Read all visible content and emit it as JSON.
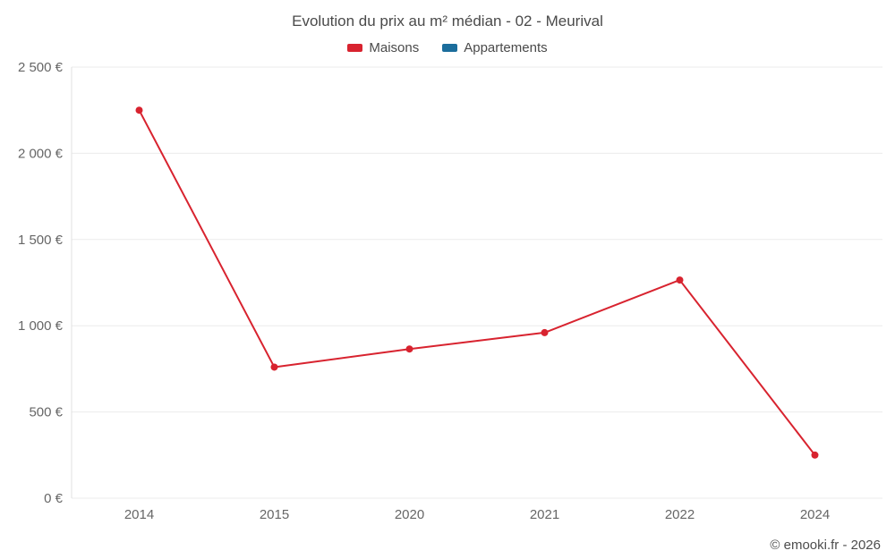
{
  "title": "Evolution du prix au m² médian - 02 - Meurival",
  "legend": [
    {
      "label": "Maisons",
      "color": "#d8232f"
    },
    {
      "label": "Appartements",
      "color": "#1b6d9c"
    }
  ],
  "footer": "© emooki.fr - 2026",
  "chart_data": {
    "type": "line",
    "title": "Evolution du prix au m² médian - 02 - Meurival",
    "categories": [
      "2014",
      "2015",
      "2020",
      "2021",
      "2022",
      "2024"
    ],
    "series": [
      {
        "name": "Maisons",
        "color": "#d8232f",
        "values": [
          2250,
          760,
          865,
          960,
          1265,
          250
        ]
      },
      {
        "name": "Appartements",
        "color": "#1b6d9c",
        "values": []
      }
    ],
    "yticks": [
      {
        "value": 0,
        "label": "0 €"
      },
      {
        "value": 500,
        "label": "500 €"
      },
      {
        "value": 1000,
        "label": "1 000 €"
      },
      {
        "value": 1500,
        "label": "1 500 €"
      },
      {
        "value": 2000,
        "label": "2 000 €"
      },
      {
        "value": 2500,
        "label": "2 500 €"
      }
    ],
    "ylim": [
      0,
      2500
    ],
    "grid": true,
    "legend_position": "top",
    "grid_color": "#ebebeb",
    "axis_color": "#e0e0e0"
  }
}
